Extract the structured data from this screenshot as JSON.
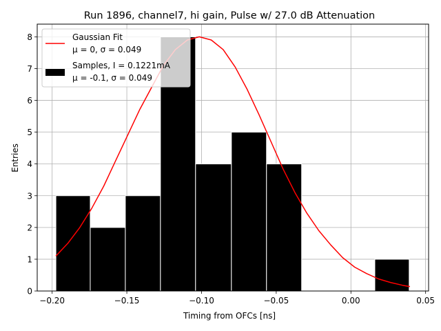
{
  "chart_data": {
    "type": "bar",
    "title": "Run 1896, channel7, hi gain, Pulse w/ 27.0 dB Attenuation",
    "xlabel": "Timing from OFCs [ns]",
    "ylabel": "Entries",
    "xlim": [
      -0.21,
      0.052
    ],
    "ylim": [
      0,
      8.4
    ],
    "grid": true,
    "legend_position": "top-left",
    "x_ticks": [
      -0.2,
      -0.15,
      -0.1,
      -0.05,
      0.0,
      0.05
    ],
    "x_tick_labels": [
      "−0.20",
      "−0.15",
      "−0.10",
      "−0.05",
      "0.00",
      "0.05"
    ],
    "y_ticks": [
      0,
      1,
      2,
      3,
      4,
      5,
      6,
      7,
      8
    ],
    "y_tick_labels": [
      "0",
      "1",
      "2",
      "3",
      "4",
      "5",
      "6",
      "7",
      "8"
    ],
    "histogram": {
      "name_line1": "Samples, I = 0.1221mA",
      "name_line2": "μ = -0.1, σ = 0.049",
      "color": "#000000",
      "edge_color": "#ffffff",
      "bins": [
        {
          "x0": -0.1975,
          "x1": -0.1745,
          "count": 3
        },
        {
          "x0": -0.1745,
          "x1": -0.151,
          "count": 2
        },
        {
          "x0": -0.151,
          "x1": -0.1275,
          "count": 3
        },
        {
          "x0": -0.1275,
          "x1": -0.104,
          "count": 8
        },
        {
          "x0": -0.104,
          "x1": -0.08,
          "count": 4
        },
        {
          "x0": -0.08,
          "x1": -0.0565,
          "count": 5
        },
        {
          "x0": -0.0565,
          "x1": -0.033,
          "count": 4
        },
        {
          "x0": -0.033,
          "x1": -0.0095,
          "count": 0
        },
        {
          "x0": -0.0095,
          "x1": 0.014,
          "count": 0
        },
        {
          "x0": 0.016,
          "x1": 0.039,
          "count": 1
        }
      ]
    },
    "fit": {
      "name_line1": "Gaussian Fit",
      "name_line2": "μ = 0, σ = 0.049",
      "color": "#ff0000",
      "x": [
        -0.1975,
        -0.1895,
        -0.1815,
        -0.1735,
        -0.1655,
        -0.1575,
        -0.1495,
        -0.1415,
        -0.1335,
        -0.1255,
        -0.1175,
        -0.1095,
        -0.1015,
        -0.0935,
        -0.0855,
        -0.0775,
        -0.0695,
        -0.0615,
        -0.0535,
        -0.0455,
        -0.0375,
        -0.0295,
        -0.0215,
        -0.0135,
        -0.0055,
        0.0025,
        0.0105,
        0.0185,
        0.0265,
        0.0345,
        0.0395
      ],
      "y": [
        1.1,
        1.5,
        2.0,
        2.6,
        3.3,
        4.1,
        4.9,
        5.7,
        6.4,
        7.1,
        7.6,
        7.9,
        8.0,
        7.9,
        7.6,
        7.05,
        6.35,
        5.55,
        4.7,
        3.85,
        3.1,
        2.45,
        1.9,
        1.45,
        1.05,
        0.75,
        0.55,
        0.38,
        0.27,
        0.18,
        0.14
      ]
    }
  }
}
